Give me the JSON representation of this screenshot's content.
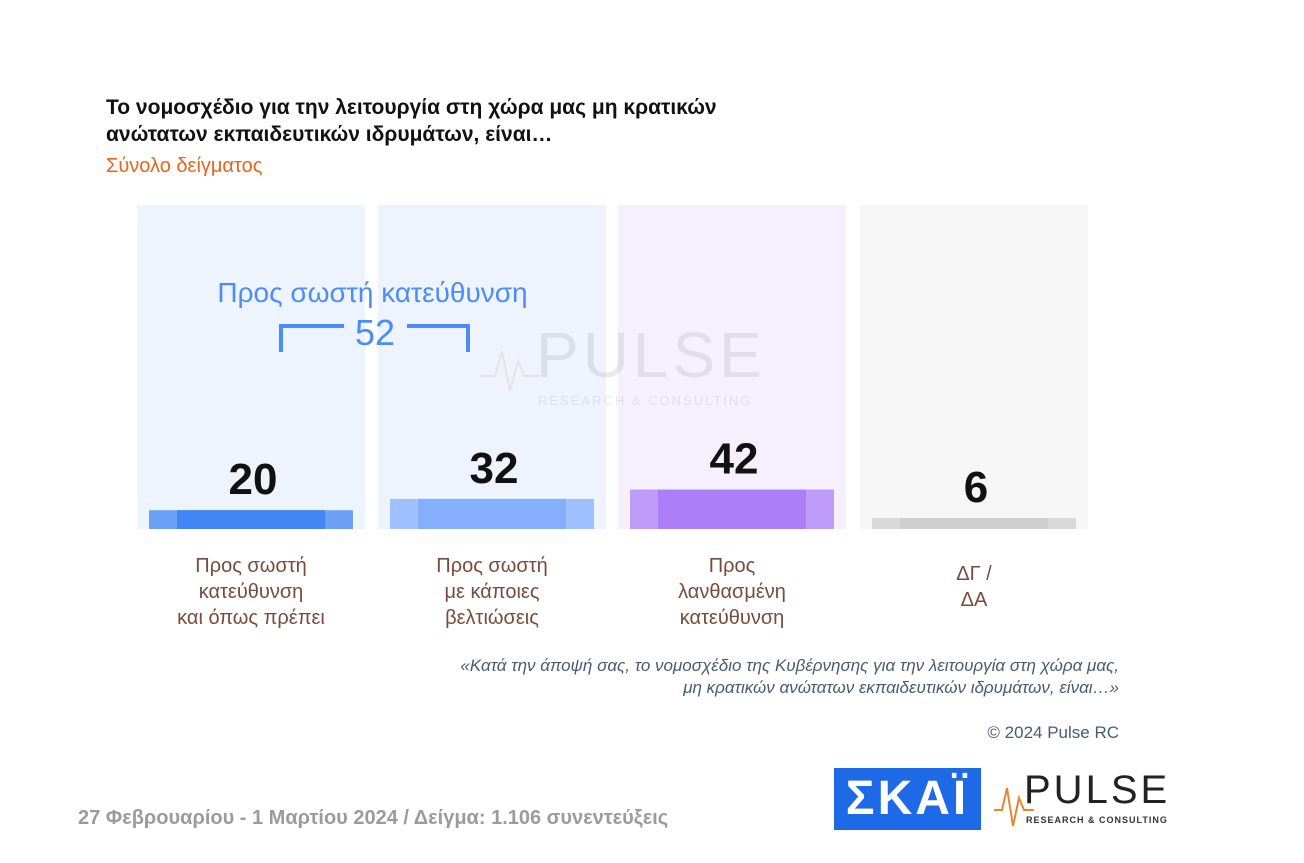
{
  "header": {
    "title": "Το νομοσχέδιο για την λειτουργία στη χώρα μας μη κρατικών ανώτατων εκπαιδευτικών ιδρυμάτων, είναι…",
    "subtitle": "Σύνολο δείγματος"
  },
  "chart_data": {
    "type": "bar",
    "categories": [
      "Προς σωστή\nκατεύθυνση\nκαι όπως πρέπει",
      "Προς σωστή\nμε κάποιες\nβελτιώσεις",
      "Προς\nλανθασμένη\nκατεύθυνση",
      "ΔΓ /\nΔΑ"
    ],
    "values": [
      20,
      32,
      42,
      6
    ],
    "colors": [
      "#4285f4",
      "#86b0ff",
      "#ac7ff8",
      "#cfcfcf"
    ],
    "ylim": [
      0,
      100
    ],
    "grid": false,
    "group_annotation": {
      "label": "Προς σωστή κατεύθυνση",
      "value": "52",
      "spans": [
        0,
        1
      ],
      "color": "#4b8df8"
    }
  },
  "note": {
    "question": "«Κατά την άποψή σας, το νομοσχέδιο της Κυβέρνησης για την λειτουργία στη χώρα μας,\nμη κρατικών ανώτατων εκπαιδευτικών ιδρυμάτων, είναι…»",
    "copyright": "© 2024 Pulse RC"
  },
  "footer": {
    "text": "27 Φεβρουαρίου - 1 Μαρτίου 2024  /  Δείγμα:  1.106 συνεντεύξεις"
  },
  "logos": {
    "skai": "ΣΚΑΪ",
    "pulse": "PULSE",
    "pulse_tagline": "RESEARCH & CONSULTING",
    "watermark": "PULSE",
    "watermark_tagline": "RESEARCH & CONSULTING"
  }
}
